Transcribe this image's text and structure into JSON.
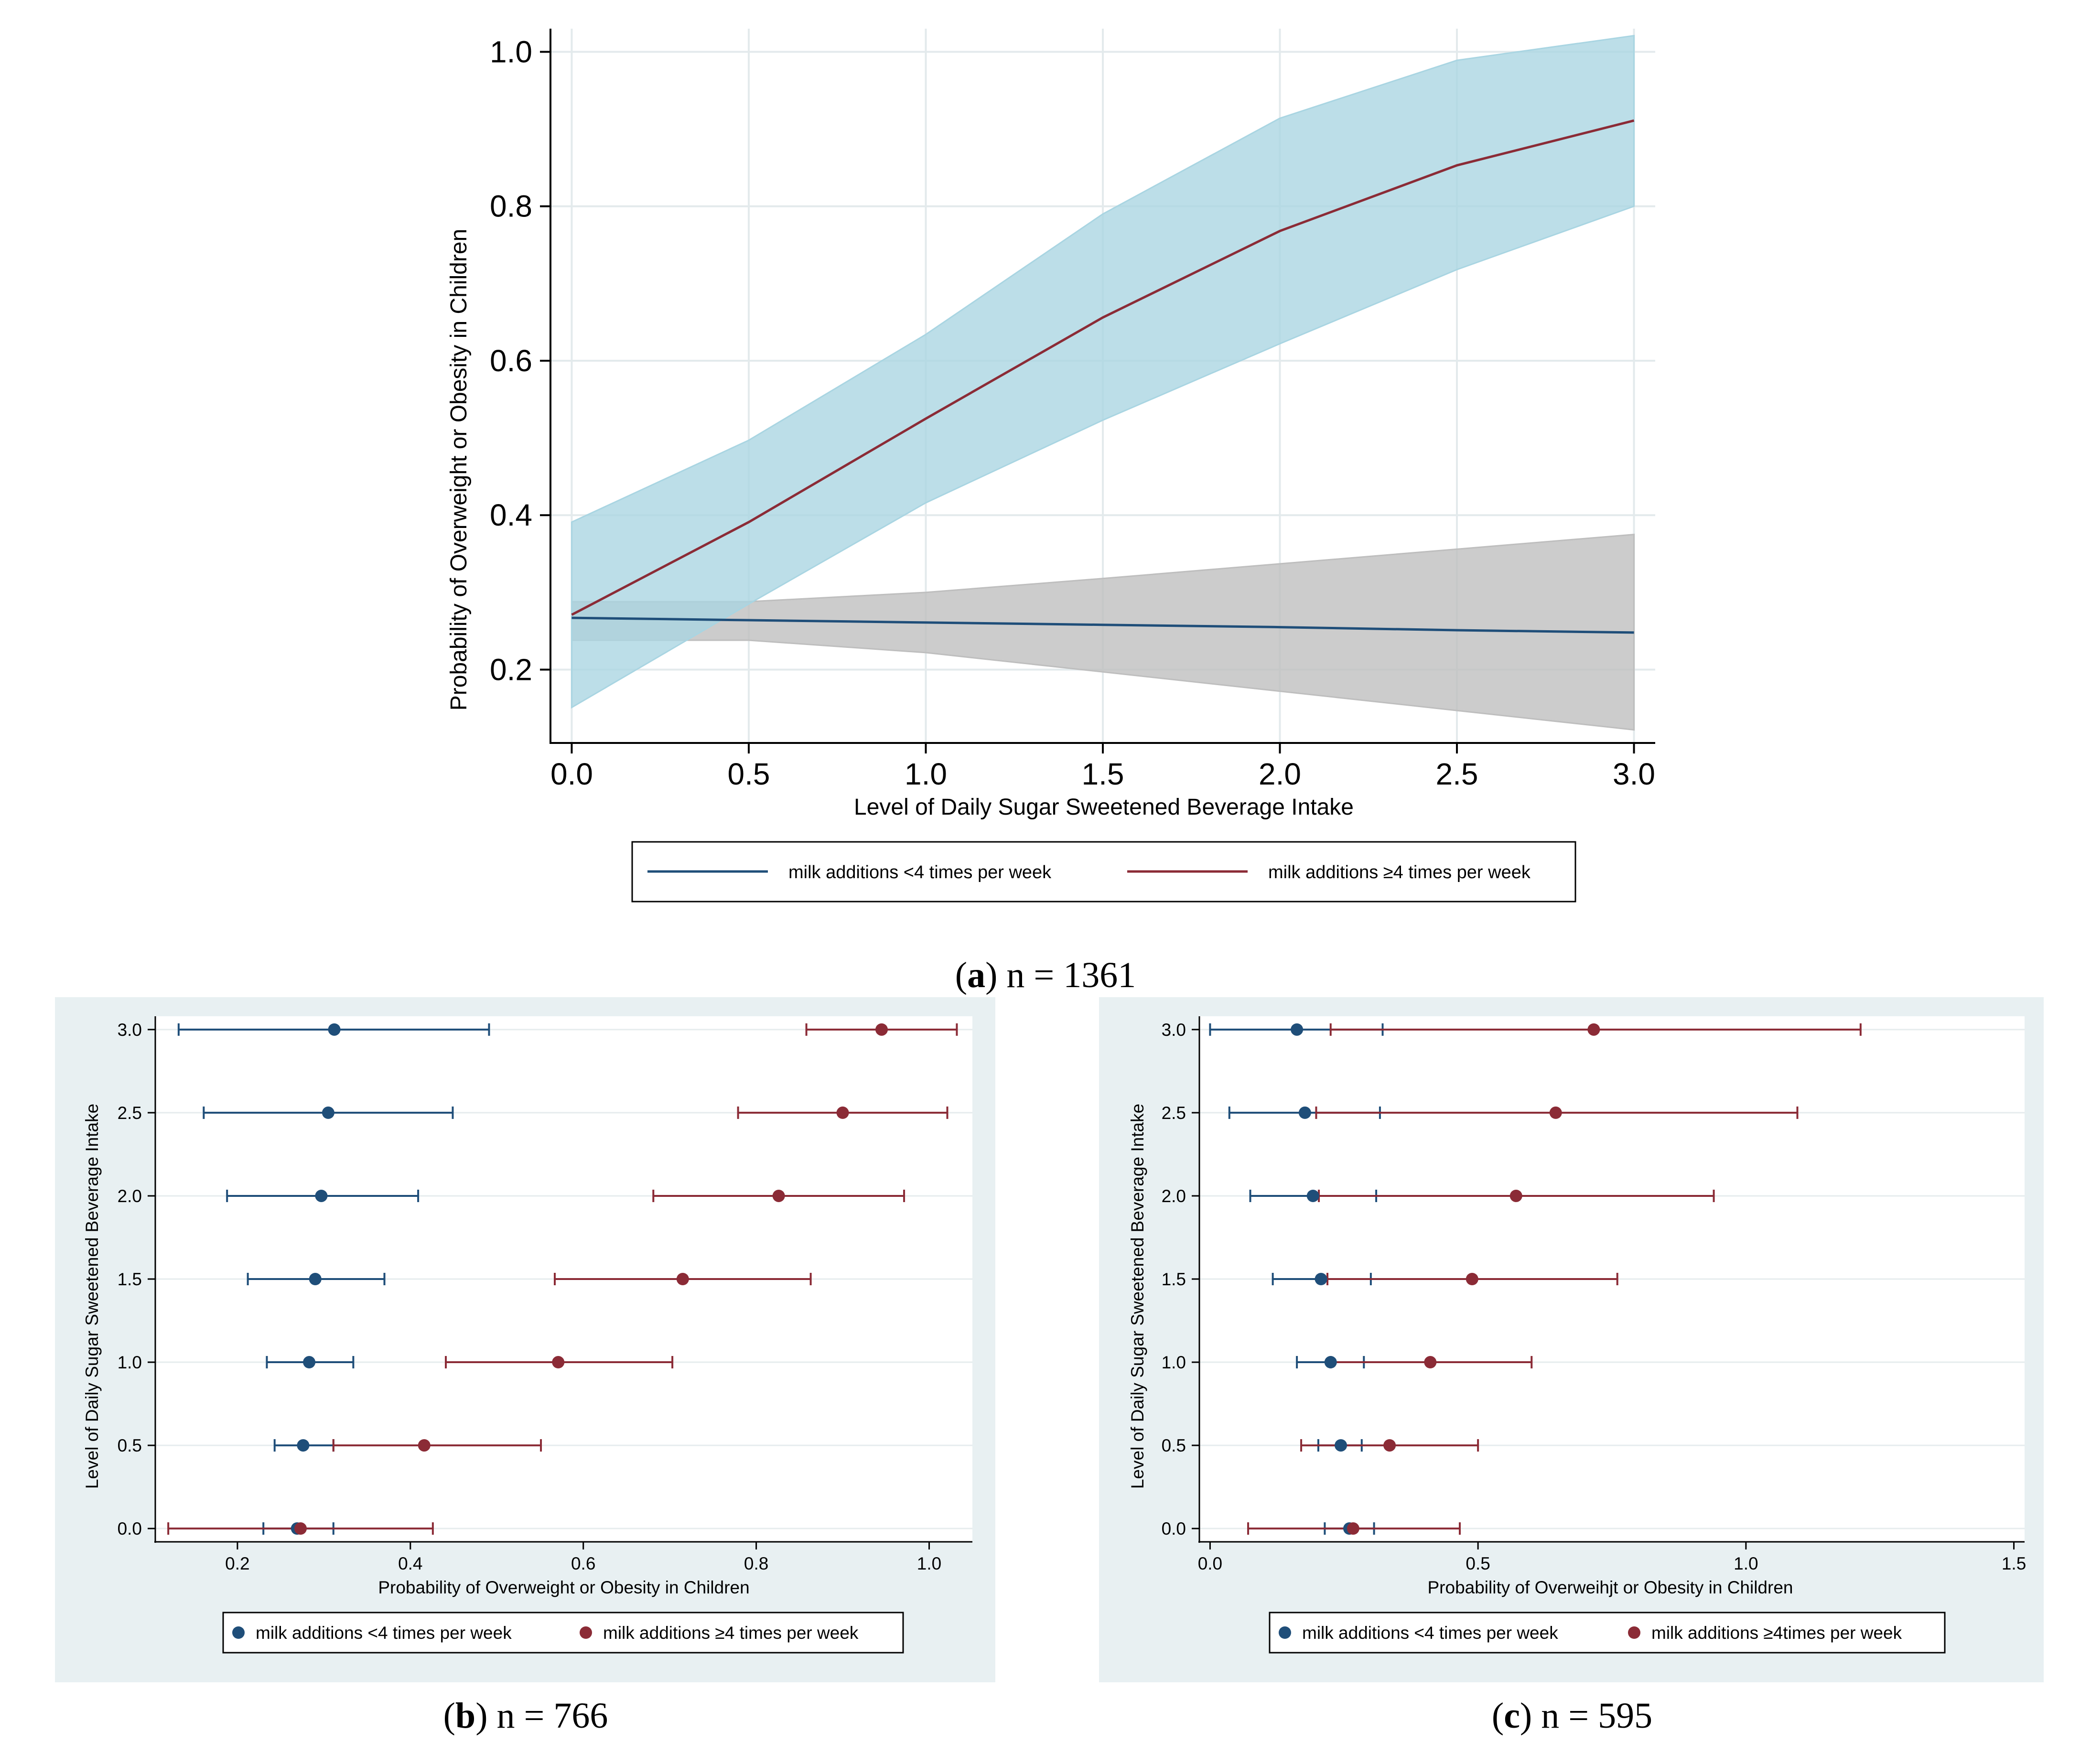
{
  "chart_data": [
    {
      "type": "line",
      "panel": "a",
      "caption": {
        "letter": "a",
        "text": "n = 1361"
      },
      "xlabel": "Level of Daily Sugar Sweetened Beverage Intake",
      "ylabel": "Probability of Overweight or Obesity in Children",
      "xlim": [
        -0.06,
        3.06
      ],
      "ylim": [
        0.105,
        1.03
      ],
      "xticks": [
        0.0,
        0.5,
        1.0,
        1.5,
        2.0,
        2.5,
        3.0
      ],
      "xtick_labels": [
        "0.0",
        "0.5",
        "1.0",
        "1.5",
        "2.0",
        "2.5",
        "3.0"
      ],
      "yticks": [
        0.2,
        0.4,
        0.6,
        0.8,
        1.0
      ],
      "ytick_labels": [
        "0.2",
        "0.4",
        "0.6",
        "0.8",
        "1.0"
      ],
      "grid": true,
      "legend_position": "bottom",
      "x": [
        0.0,
        0.5,
        1.0,
        1.5,
        2.0,
        2.5,
        3.0
      ],
      "series": [
        {
          "name": "milk additions <4 times per week",
          "color": "#1f4e79",
          "band_color": "#bebebe",
          "values": [
            0.267,
            0.264,
            0.261,
            0.258,
            0.255,
            0.251,
            0.248
          ],
          "lower": [
            0.238,
            0.238,
            0.222,
            0.197,
            0.172,
            0.147,
            0.122
          ],
          "upper": [
            0.288,
            0.288,
            0.3,
            0.318,
            0.337,
            0.356,
            0.375
          ]
        },
        {
          "name": "milk additions ≥4 times per week",
          "color": "#8b2b36",
          "band_color": "#a9d5e2",
          "values": [
            0.271,
            0.391,
            0.525,
            0.656,
            0.768,
            0.853,
            0.911
          ],
          "lower": [
            0.151,
            0.285,
            0.416,
            0.523,
            0.622,
            0.718,
            0.8
          ],
          "upper": [
            0.391,
            0.497,
            0.634,
            0.79,
            0.914,
            0.989,
            1.021
          ]
        }
      ]
    },
    {
      "type": "scatter",
      "panel": "b",
      "caption": {
        "letter": "b",
        "text": "n = 766"
      },
      "xlabel": "Probability of Overweight or Obesity in Children",
      "ylabel": "Level of Daily Sugar Sweetened Beverage Intake",
      "xlim": [
        0.105,
        1.05
      ],
      "ylim": [
        -0.08,
        3.08
      ],
      "xticks": [
        0.2,
        0.4,
        0.6,
        0.8,
        1.0
      ],
      "xtick_labels": [
        "0.2",
        "0.4",
        "0.6",
        "0.8",
        "1.0"
      ],
      "yticks": [
        0.0,
        0.5,
        1.0,
        1.5,
        2.0,
        2.5,
        3.0
      ],
      "ytick_labels": [
        "0.0",
        "0.5",
        "1.0",
        "1.5",
        "2.0",
        "2.5",
        "3.0"
      ],
      "grid": true,
      "legend_position": "bottom",
      "y": [
        0.0,
        0.5,
        1.0,
        1.5,
        2.0,
        2.5,
        3.0
      ],
      "series": [
        {
          "name": "milk additions <4 times per week",
          "color": "#1f4e79",
          "values": [
            0.269,
            0.276,
            0.283,
            0.29,
            0.297,
            0.305,
            0.312
          ],
          "lower": [
            0.23,
            0.243,
            0.234,
            0.212,
            0.188,
            0.161,
            0.132
          ],
          "upper": [
            0.311,
            0.311,
            0.334,
            0.37,
            0.409,
            0.449,
            0.491
          ]
        },
        {
          "name": "milk additions ≥4 times per week",
          "color": "#8b2b36",
          "values": [
            0.273,
            0.416,
            0.571,
            0.715,
            0.826,
            0.9,
            0.945
          ],
          "lower": [
            0.12,
            0.311,
            0.441,
            0.567,
            0.681,
            0.779,
            0.858
          ],
          "upper": [
            0.426,
            0.551,
            0.703,
            0.863,
            0.971,
            1.021,
            1.032
          ]
        }
      ]
    },
    {
      "type": "scatter",
      "panel": "c",
      "caption": {
        "letter": "c",
        "text": "n = 595"
      },
      "xlabel": "Probability of Overweihjt or Obesity in Children",
      "ylabel": "Level of Daily Sugar Sweetened Beverage Intake",
      "xlim": [
        -0.02,
        1.52
      ],
      "ylim": [
        -0.08,
        3.08
      ],
      "xticks": [
        0.0,
        0.5,
        1.0,
        1.5
      ],
      "xtick_labels": [
        "0.0",
        "0.5",
        "1.0",
        "1.5"
      ],
      "yticks": [
        0.0,
        0.5,
        1.0,
        1.5,
        2.0,
        2.5,
        3.0
      ],
      "ytick_labels": [
        "0.0",
        "0.5",
        "1.0",
        "1.5",
        "2.0",
        "2.5",
        "3.0"
      ],
      "grid": true,
      "legend_position": "bottom",
      "y": [
        0.0,
        0.5,
        1.0,
        1.5,
        2.0,
        2.5,
        3.0
      ],
      "series": [
        {
          "name": "milk additions <4 times per week",
          "color": "#1f4e79",
          "values": [
            0.26,
            0.244,
            0.225,
            0.207,
            0.192,
            0.177,
            0.162
          ],
          "lower": [
            0.214,
            0.202,
            0.162,
            0.117,
            0.075,
            0.036,
            0.0
          ],
          "upper": [
            0.306,
            0.283,
            0.287,
            0.3,
            0.31,
            0.317,
            0.322
          ]
        },
        {
          "name": "milk additions ≥4times per week",
          "color": "#8b2b36",
          "values": [
            0.267,
            0.335,
            0.411,
            0.489,
            0.571,
            0.645,
            0.716
          ],
          "lower": [
            0.071,
            0.17,
            0.225,
            0.219,
            0.203,
            0.198,
            0.225
          ],
          "upper": [
            0.466,
            0.5,
            0.6,
            0.76,
            0.94,
            1.096,
            1.214
          ]
        }
      ]
    }
  ]
}
